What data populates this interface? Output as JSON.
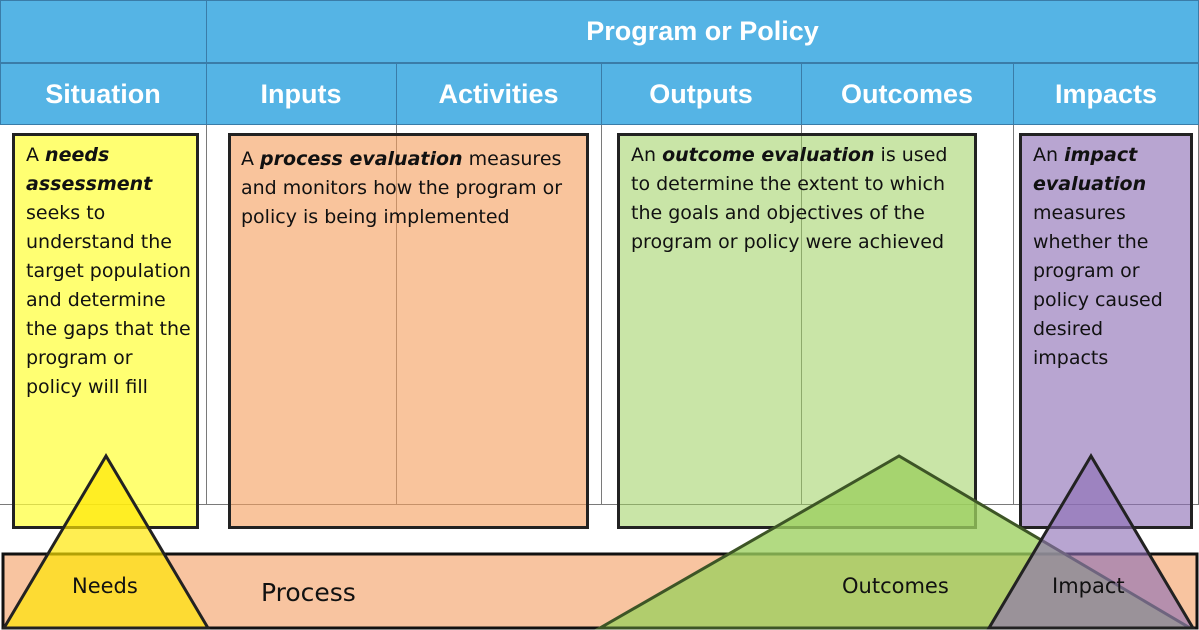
{
  "header": {
    "title": "Program or Policy",
    "columns": [
      "Situation",
      "Inputs",
      "Activities",
      "Outputs",
      "Outcomes",
      "Impacts"
    ]
  },
  "boxes": {
    "needs": {
      "prefix": "A ",
      "term": "needs assessment",
      "body": "seeks to understand the target population and determine the gaps that the program or policy will fill",
      "color": "#ffff66"
    },
    "process": {
      "prefix": "A ",
      "term": "process evaluation",
      "body": "measures and monitors how the program or policy is being implemented",
      "color": "#f8b57f"
    },
    "outcome": {
      "prefix": "An ",
      "term": "outcome evaluation",
      "body": "is used to determine the extent to which the goals and objectives of the program or policy were achieved",
      "color": "#b8df92"
    },
    "impact": {
      "prefix": "An ",
      "term": "impact evaluation",
      "body": "measures whether the program or policy caused desired impacts",
      "color": "#ae93c8"
    }
  },
  "base": {
    "needs": "Needs",
    "process": "Process",
    "outcomes": "Outcomes",
    "impact": "Impact"
  },
  "colors": {
    "header": "#55b4e5",
    "needs": "#ffff33",
    "process": "#f8b57f",
    "outcomes": "#9ccf5f",
    "impact": "#8c6db4"
  }
}
